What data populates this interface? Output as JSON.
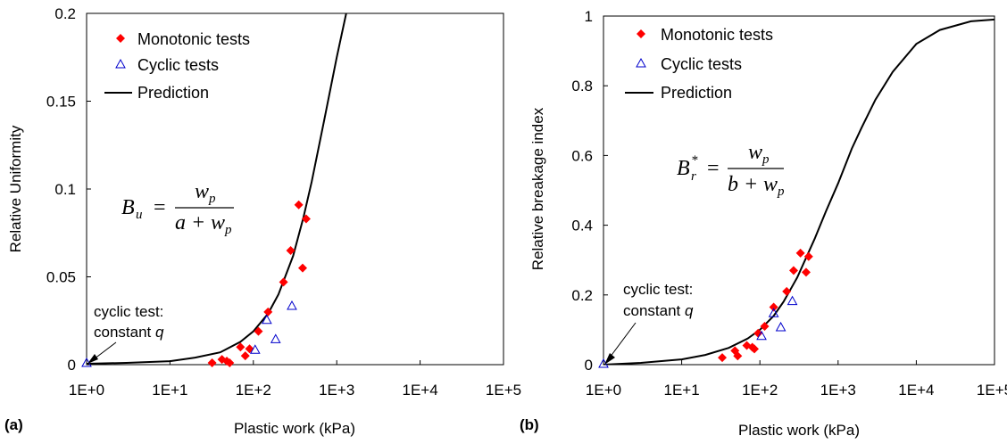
{
  "chart_data": [
    {
      "panel_label": "(a)",
      "type": "scatter",
      "xlabel": "Plastic work (kPa)",
      "ylabel": "Relative Uniformity",
      "xscale": "log",
      "xlim": [
        1,
        100000
      ],
      "ylim": [
        0,
        0.2
      ],
      "x_ticks": [
        "1E+0",
        "1E+1",
        "1E+2",
        "1E+3",
        "1E+4",
        "1E+5"
      ],
      "y_ticks": [
        "0",
        "0.05",
        "0.1",
        "0.15",
        "0.2"
      ],
      "grid": false,
      "legend_position": "top-left",
      "equation": {
        "lhs": "B",
        "lhs_sub": "u",
        "num": "w",
        "num_sub": "p",
        "den_pre": "a + ",
        "den_var": "w",
        "den_sub": "p"
      },
      "annotation": {
        "line1": "cyclic test:",
        "line2_text": "constant ",
        "line2_var": "q",
        "x": 1,
        "y": 0
      },
      "series": [
        {
          "name": "Monotonic tests",
          "marker": "diamond",
          "color": "#ff0000",
          "points": [
            [
              32,
              0.001
            ],
            [
              42,
              0.003
            ],
            [
              48,
              0.002
            ],
            [
              52,
              0.001
            ],
            [
              70,
              0.01
            ],
            [
              80,
              0.005
            ],
            [
              90,
              0.009
            ],
            [
              115,
              0.019
            ],
            [
              150,
              0.03
            ],
            [
              230,
              0.047
            ],
            [
              280,
              0.065
            ],
            [
              350,
              0.091
            ],
            [
              390,
              0.055
            ],
            [
              430,
              0.083
            ]
          ]
        },
        {
          "name": "Cyclic tests",
          "marker": "triangle",
          "color": "#0000cc",
          "points": [
            [
              1,
              0.0005
            ],
            [
              105,
              0.008
            ],
            [
              145,
              0.025
            ],
            [
              185,
              0.014
            ],
            [
              290,
              0.033
            ]
          ]
        },
        {
          "name": "Prediction",
          "marker": "line",
          "color": "#000000",
          "points": [
            [
              1,
              0.0005
            ],
            [
              3,
              0.001
            ],
            [
              10,
              0.002
            ],
            [
              20,
              0.004
            ],
            [
              40,
              0.007
            ],
            [
              70,
              0.013
            ],
            [
              100,
              0.019
            ],
            [
              150,
              0.029
            ],
            [
              200,
              0.04
            ],
            [
              300,
              0.062
            ],
            [
              400,
              0.084
            ],
            [
              500,
              0.104
            ],
            [
              700,
              0.138
            ],
            [
              1000,
              0.175
            ],
            [
              1300,
              0.2
            ]
          ]
        }
      ]
    },
    {
      "panel_label": "(b)",
      "type": "scatter",
      "xlabel": "Plastic work (kPa)",
      "ylabel": "Relative breakage index",
      "xscale": "log",
      "xlim": [
        1,
        100000
      ],
      "ylim": [
        0,
        1
      ],
      "x_ticks": [
        "1E+0",
        "1E+1",
        "1E+2",
        "1E+3",
        "1E+4",
        "1E+5"
      ],
      "y_ticks": [
        "0",
        "0.2",
        "0.4",
        "0.6",
        "0.8",
        "1"
      ],
      "grid": false,
      "legend_position": "top-left",
      "equation": {
        "lhs": "B",
        "lhs_sub": "r",
        "lhs_sup": "*",
        "num": "w",
        "num_sub": "p",
        "den_pre": "b + ",
        "den_var": "w",
        "den_sub": "p"
      },
      "annotation": {
        "line1": "cyclic test:",
        "line2_text": "constant ",
        "line2_var": "q",
        "x": 1,
        "y": 0
      },
      "series": [
        {
          "name": "Monotonic tests",
          "marker": "diamond",
          "color": "#ff0000",
          "points": [
            [
              33,
              0.02
            ],
            [
              48,
              0.04
            ],
            [
              52,
              0.025
            ],
            [
              68,
              0.055
            ],
            [
              80,
              0.05
            ],
            [
              85,
              0.045
            ],
            [
              95,
              0.09
            ],
            [
              115,
              0.11
            ],
            [
              150,
              0.165
            ],
            [
              220,
              0.21
            ],
            [
              270,
              0.27
            ],
            [
              330,
              0.32
            ],
            [
              390,
              0.265
            ],
            [
              420,
              0.31
            ]
          ]
        },
        {
          "name": "Cyclic tests",
          "marker": "triangle",
          "color": "#0000cc",
          "points": [
            [
              1,
              0.0
            ],
            [
              105,
              0.08
            ],
            [
              150,
              0.145
            ],
            [
              185,
              0.105
            ],
            [
              260,
              0.18
            ]
          ]
        },
        {
          "name": "Prediction",
          "marker": "line",
          "color": "#000000",
          "points": [
            [
              1,
              0.0
            ],
            [
              3,
              0.005
            ],
            [
              10,
              0.015
            ],
            [
              20,
              0.028
            ],
            [
              40,
              0.048
            ],
            [
              70,
              0.075
            ],
            [
              100,
              0.1
            ],
            [
              150,
              0.14
            ],
            [
              200,
              0.18
            ],
            [
              300,
              0.25
            ],
            [
              500,
              0.36
            ],
            [
              700,
              0.44
            ],
            [
              1000,
              0.52
            ],
            [
              1500,
              0.62
            ],
            [
              2000,
              0.68
            ],
            [
              3000,
              0.76
            ],
            [
              5000,
              0.84
            ],
            [
              10000,
              0.92
            ],
            [
              20000,
              0.96
            ],
            [
              50000,
              0.985
            ],
            [
              100000,
              0.99
            ]
          ]
        }
      ]
    }
  ]
}
